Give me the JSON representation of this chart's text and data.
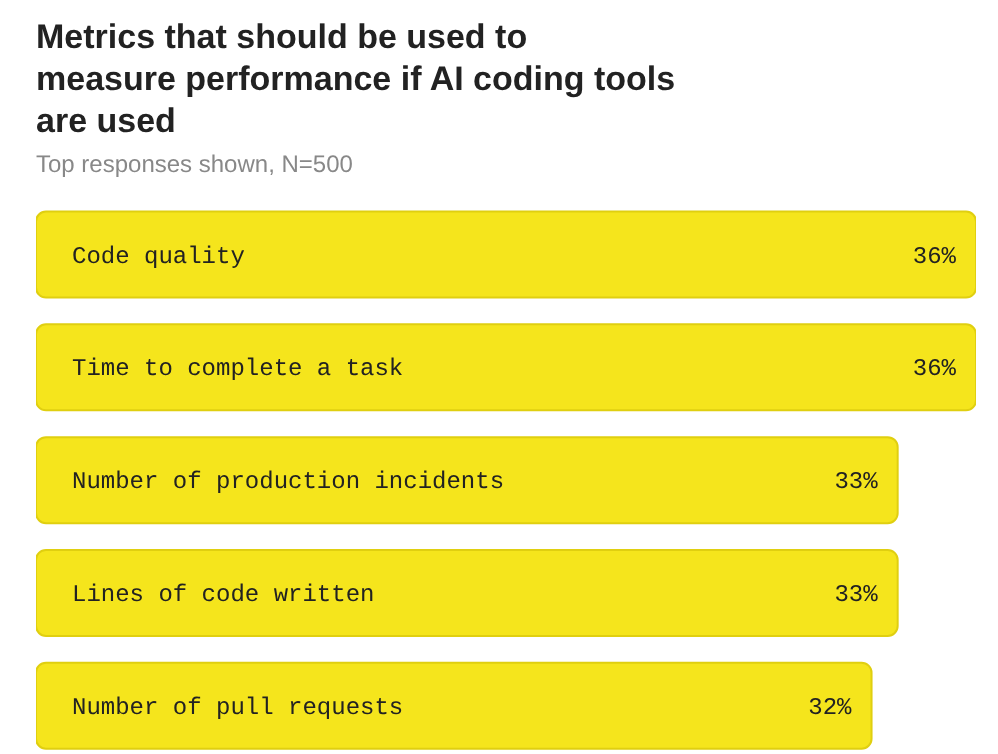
{
  "chart_data": {
    "type": "bar",
    "orientation": "horizontal",
    "title": "Metrics that should be used to measure performance if AI coding tools are used",
    "subtitle": "Top responses shown, N=500",
    "categories": [
      "Code quality",
      "Time to complete a task",
      "Number of production incidents",
      "Lines of code written",
      "Number of pull requests"
    ],
    "values": [
      36,
      36,
      33,
      33,
      32
    ],
    "color": "#f5e51c",
    "value_labels": [
      "36%",
      "36%",
      "33%",
      "33%",
      "32%"
    ]
  }
}
